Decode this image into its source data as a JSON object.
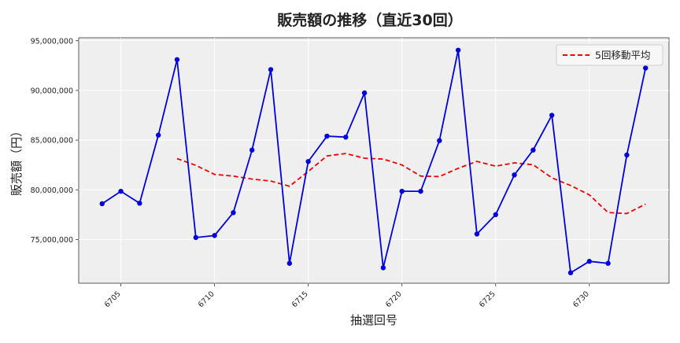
{
  "chart_data": {
    "type": "line",
    "title": "販売額の推移（直近30回）",
    "xlabel": "抽選回号",
    "ylabel": "販売額（円）",
    "x": [
      6704,
      6705,
      6706,
      6707,
      6708,
      6709,
      6710,
      6711,
      6712,
      6713,
      6714,
      6715,
      6716,
      6717,
      6718,
      6719,
      6720,
      6721,
      6722,
      6723,
      6724,
      6725,
      6726,
      6727,
      6728,
      6729,
      6730,
      6731,
      6732,
      6733
    ],
    "xticks": [
      6705,
      6710,
      6715,
      6720,
      6725,
      6730
    ],
    "yticks": [
      75000000,
      80000000,
      85000000,
      90000000,
      95000000
    ],
    "ytick_labels": [
      "75,000,000",
      "80,000,000",
      "85,000,000",
      "90,000,000",
      "95,000,000"
    ],
    "xlim": [
      6702.75,
      6734.25
    ],
    "ylim": [
      70600000,
      95300000
    ],
    "grid": true,
    "legend_position": "top-right",
    "series": [
      {
        "name": "",
        "color": "#0000dd",
        "style": "solid-with-markers",
        "values": [
          78600000,
          79850000,
          78650000,
          85500000,
          93100000,
          75200000,
          75400000,
          77700000,
          84000000,
          92100000,
          72600000,
          82850000,
          85400000,
          85300000,
          89750000,
          72150000,
          79850000,
          79850000,
          84950000,
          94050000,
          75550000,
          77500000,
          81500000,
          84000000,
          87500000,
          71650000,
          72800000,
          72600000,
          83500000,
          92250000
        ]
      },
      {
        "name": "5回移動平均",
        "color": "#ee0000",
        "style": "dashed",
        "values": [
          null,
          null,
          null,
          null,
          83140000,
          82460000,
          81550000,
          81380000,
          81080000,
          80880000,
          80360000,
          81850000,
          83410000,
          83650000,
          83180000,
          83090000,
          82500000,
          81380000,
          81330000,
          82160000,
          82860000,
          82380000,
          82710000,
          82520000,
          81210000,
          80430000,
          79490000,
          77710000,
          77610000,
          78560000
        ]
      }
    ]
  }
}
